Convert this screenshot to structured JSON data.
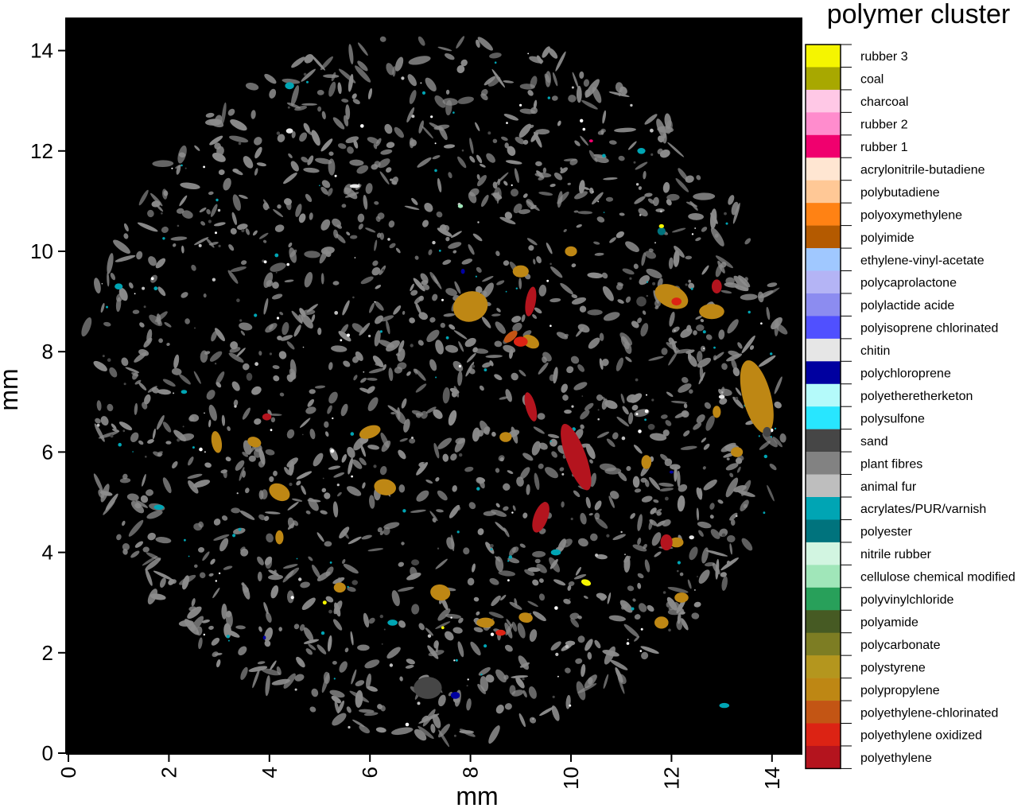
{
  "figure": {
    "x_axis_label": "mm",
    "y_axis_label": "mm",
    "x_ticks": [
      "0",
      "2",
      "4",
      "6",
      "8",
      "10",
      "12",
      "14"
    ],
    "y_ticks": [
      "0",
      "2",
      "4",
      "6",
      "8",
      "10",
      "12",
      "14"
    ],
    "x_range": [
      0,
      14.7
    ],
    "y_range": [
      0,
      14.6
    ],
    "background_color": "#000000",
    "matrix_color": "#8c8c8c"
  },
  "legend": {
    "title": "polymer cluster",
    "items": [
      {
        "label": "rubber 3",
        "color": "#f5f500"
      },
      {
        "label": "coal",
        "color": "#a8a800"
      },
      {
        "label": "charcoal",
        "color": "#ffc8e6"
      },
      {
        "label": "rubber 2",
        "color": "#ff8ccd"
      },
      {
        "label": "rubber 1",
        "color": "#f0006e"
      },
      {
        "label": "acrylonitrile-butadiene",
        "color": "#ffe6d2"
      },
      {
        "label": "polybutadiene",
        "color": "#ffc896"
      },
      {
        "label": "polyoxymethylene",
        "color": "#ff8214"
      },
      {
        "label": "polyimide",
        "color": "#b45a00"
      },
      {
        "label": "ethylene-vinyl-acetate",
        "color": "#a0c8ff"
      },
      {
        "label": "polycaprolactone",
        "color": "#b4b4f5"
      },
      {
        "label": "polylactide acide",
        "color": "#8c8cf0"
      },
      {
        "label": "polyisoprene chlorinated",
        "color": "#5050ff"
      },
      {
        "label": "chitin",
        "color": "#e6e6e6"
      },
      {
        "label": "polychloroprene",
        "color": "#0000a0"
      },
      {
        "label": "polyetheretherketon",
        "color": "#b4fafa"
      },
      {
        "label": "polysulfone",
        "color": "#28e6ff"
      },
      {
        "label": "sand",
        "color": "#464646"
      },
      {
        "label": "plant fibres",
        "color": "#828282"
      },
      {
        "label": "animal fur",
        "color": "#bebebe"
      },
      {
        "label": "acrylates/PUR/varnish",
        "color": "#00a5b4"
      },
      {
        "label": "polyester",
        "color": "#00737d"
      },
      {
        "label": "nitrile rubber",
        "color": "#d2f5e1"
      },
      {
        "label": "cellulose chemical modified",
        "color": "#a0e6b9"
      },
      {
        "label": "polyvinylchloride",
        "color": "#28a05a"
      },
      {
        "label": "polyamide",
        "color": "#465a23"
      },
      {
        "label": "polycarbonate",
        "color": "#7d7d23"
      },
      {
        "label": "polystyrene",
        "color": "#b4961e"
      },
      {
        "label": "polypropylene",
        "color": "#be8714"
      },
      {
        "label": "polyethylene-chlorinated",
        "color": "#c35514"
      },
      {
        "label": "polyethylene oxidized",
        "color": "#dc2314"
      },
      {
        "label": "polyethylene",
        "color": "#b4141e"
      }
    ]
  },
  "particles": [
    {
      "cls": "polypropylene",
      "x": 8.0,
      "y": 8.9,
      "rx": 0.35,
      "ry": 0.3,
      "rot": -20
    },
    {
      "cls": "polypropylene",
      "x": 13.7,
      "y": 7.1,
      "rx": 0.28,
      "ry": 0.75,
      "rot": -15
    },
    {
      "cls": "polypropylene",
      "x": 12.0,
      "y": 9.1,
      "rx": 0.35,
      "ry": 0.22,
      "rot": 25
    },
    {
      "cls": "polypropylene",
      "x": 12.8,
      "y": 8.8,
      "rx": 0.25,
      "ry": 0.15,
      "rot": 0
    },
    {
      "cls": "polypropylene",
      "x": 6.3,
      "y": 5.3,
      "rx": 0.22,
      "ry": 0.16,
      "rot": 10
    },
    {
      "cls": "polypropylene",
      "x": 6.0,
      "y": 6.4,
      "rx": 0.22,
      "ry": 0.12,
      "rot": -20
    },
    {
      "cls": "polypropylene",
      "x": 4.2,
      "y": 5.2,
      "rx": 0.22,
      "ry": 0.16,
      "rot": 30
    },
    {
      "cls": "polypropylene",
      "x": 2.95,
      "y": 6.2,
      "rx": 0.1,
      "ry": 0.22,
      "rot": -10
    },
    {
      "cls": "polypropylene",
      "x": 3.7,
      "y": 6.2,
      "rx": 0.14,
      "ry": 0.1,
      "rot": 20
    },
    {
      "cls": "polypropylene",
      "x": 7.4,
      "y": 3.2,
      "rx": 0.2,
      "ry": 0.16,
      "rot": 10
    },
    {
      "cls": "polypropylene",
      "x": 8.3,
      "y": 2.6,
      "rx": 0.18,
      "ry": 0.1,
      "rot": 0
    },
    {
      "cls": "polypropylene",
      "x": 9.1,
      "y": 2.7,
      "rx": 0.14,
      "ry": 0.1,
      "rot": 10
    },
    {
      "cls": "polypropylene",
      "x": 11.8,
      "y": 2.6,
      "rx": 0.14,
      "ry": 0.12,
      "rot": 0
    },
    {
      "cls": "polypropylene",
      "x": 12.2,
      "y": 3.1,
      "rx": 0.14,
      "ry": 0.1,
      "rot": 0
    },
    {
      "cls": "polypropylene",
      "x": 9.0,
      "y": 9.6,
      "rx": 0.16,
      "ry": 0.12,
      "rot": 0
    },
    {
      "cls": "polypropylene",
      "x": 10.0,
      "y": 10.0,
      "rx": 0.12,
      "ry": 0.1,
      "rot": 0
    },
    {
      "cls": "polypropylene",
      "x": 9.2,
      "y": 8.2,
      "rx": 0.18,
      "ry": 0.12,
      "rot": 30
    },
    {
      "cls": "polypropylene",
      "x": 8.7,
      "y": 6.3,
      "rx": 0.12,
      "ry": 0.1,
      "rot": 0
    },
    {
      "cls": "polypropylene",
      "x": 11.5,
      "y": 5.8,
      "rx": 0.1,
      "ry": 0.14,
      "rot": 0
    },
    {
      "cls": "polypropylene",
      "x": 13.3,
      "y": 6.0,
      "rx": 0.12,
      "ry": 0.1,
      "rot": 0
    },
    {
      "cls": "polypropylene",
      "x": 12.1,
      "y": 4.2,
      "rx": 0.14,
      "ry": 0.1,
      "rot": 0
    },
    {
      "cls": "polypropylene",
      "x": 5.4,
      "y": 3.3,
      "rx": 0.12,
      "ry": 0.1,
      "rot": 0
    },
    {
      "cls": "polypropylene",
      "x": 4.2,
      "y": 4.3,
      "rx": 0.08,
      "ry": 0.14,
      "rot": 0
    },
    {
      "cls": "polypropylene",
      "x": 12.9,
      "y": 6.8,
      "rx": 0.08,
      "ry": 0.12,
      "rot": 0
    },
    {
      "cls": "polyethylene",
      "x": 10.1,
      "y": 5.9,
      "rx": 0.2,
      "ry": 0.7,
      "rot": -20
    },
    {
      "cls": "polyethylene",
      "x": 9.4,
      "y": 4.7,
      "rx": 0.14,
      "ry": 0.32,
      "rot": 20
    },
    {
      "cls": "polyethylene",
      "x": 9.2,
      "y": 6.9,
      "rx": 0.1,
      "ry": 0.3,
      "rot": -15
    },
    {
      "cls": "polyethylene",
      "x": 11.9,
      "y": 4.2,
      "rx": 0.12,
      "ry": 0.16,
      "rot": 0
    },
    {
      "cls": "polyethylene",
      "x": 3.95,
      "y": 6.7,
      "rx": 0.09,
      "ry": 0.07,
      "rot": 0
    },
    {
      "cls": "polyethylene",
      "x": 12.9,
      "y": 9.3,
      "rx": 0.1,
      "ry": 0.14,
      "rot": 0
    },
    {
      "cls": "polyethylene",
      "x": 9.2,
      "y": 9.0,
      "rx": 0.1,
      "ry": 0.3,
      "rot": 10
    },
    {
      "cls": "polyethylene oxidized",
      "x": 9.0,
      "y": 8.2,
      "rx": 0.14,
      "ry": 0.1,
      "rot": 0
    },
    {
      "cls": "polyethylene oxidized",
      "x": 12.1,
      "y": 9.0,
      "rx": 0.1,
      "ry": 0.08,
      "rot": 0
    },
    {
      "cls": "polyethylene oxidized",
      "x": 8.6,
      "y": 2.4,
      "rx": 0.1,
      "ry": 0.06,
      "rot": 0
    },
    {
      "cls": "polyethylene-chlorinated",
      "x": 8.8,
      "y": 8.3,
      "rx": 0.16,
      "ry": 0.08,
      "rot": -40
    },
    {
      "cls": "sand",
      "x": 7.15,
      "y": 1.3,
      "rx": 0.28,
      "ry": 0.22,
      "rot": 0
    },
    {
      "cls": "sand",
      "x": 11.4,
      "y": 9.0,
      "rx": 0.1,
      "ry": 0.1,
      "rot": 0
    },
    {
      "cls": "sand",
      "x": 6.9,
      "y": 3.8,
      "rx": 0.08,
      "ry": 0.06,
      "rot": 0
    },
    {
      "cls": "sand",
      "x": 5.7,
      "y": 3.4,
      "rx": 0.06,
      "ry": 0.05,
      "rot": 0
    },
    {
      "cls": "sand",
      "x": 3.6,
      "y": 7.5,
      "rx": 0.06,
      "ry": 0.08,
      "rot": 0
    },
    {
      "cls": "sand",
      "x": 11.6,
      "y": 6.5,
      "rx": 0.07,
      "ry": 0.06,
      "rot": 0
    },
    {
      "cls": "sand",
      "x": 13.9,
      "y": 6.4,
      "rx": 0.08,
      "ry": 0.1,
      "rot": 0
    },
    {
      "cls": "polychloroprene",
      "x": 7.7,
      "y": 1.15,
      "rx": 0.09,
      "ry": 0.07,
      "rot": 0
    },
    {
      "cls": "polychloroprene",
      "x": 7.85,
      "y": 9.6,
      "rx": 0.04,
      "ry": 0.05,
      "rot": 0
    },
    {
      "cls": "polychloroprene",
      "x": 3.9,
      "y": 2.3,
      "rx": 0.03,
      "ry": 0.04,
      "rot": 0
    },
    {
      "cls": "polychloroprene",
      "x": 12.0,
      "y": 5.6,
      "rx": 0.04,
      "ry": 0.03,
      "rot": 0
    },
    {
      "cls": "acrylates/PUR/varnish",
      "x": 4.4,
      "y": 13.3,
      "rx": 0.09,
      "ry": 0.07,
      "rot": 0
    },
    {
      "cls": "acrylates/PUR/varnish",
      "x": 1.0,
      "y": 9.3,
      "rx": 0.08,
      "ry": 0.06,
      "rot": 0
    },
    {
      "cls": "acrylates/PUR/varnish",
      "x": 1.8,
      "y": 4.9,
      "rx": 0.1,
      "ry": 0.05,
      "rot": 0
    },
    {
      "cls": "acrylates/PUR/varnish",
      "x": 6.45,
      "y": 2.6,
      "rx": 0.1,
      "ry": 0.06,
      "rot": 0
    },
    {
      "cls": "acrylates/PUR/varnish",
      "x": 13.05,
      "y": 0.95,
      "rx": 0.1,
      "ry": 0.05,
      "rot": 0
    },
    {
      "cls": "acrylates/PUR/varnish",
      "x": 11.4,
      "y": 12.0,
      "rx": 0.08,
      "ry": 0.06,
      "rot": 0
    },
    {
      "cls": "acrylates/PUR/varnish",
      "x": 9.7,
      "y": 4.0,
      "rx": 0.1,
      "ry": 0.06,
      "rot": 0
    },
    {
      "cls": "acrylates/PUR/varnish",
      "x": 2.3,
      "y": 7.2,
      "rx": 0.06,
      "ry": 0.04,
      "rot": 0
    },
    {
      "cls": "polyester",
      "x": 11.8,
      "y": 10.4,
      "rx": 0.08,
      "ry": 0.08,
      "rot": 0
    },
    {
      "cls": "rubber 3",
      "x": 10.3,
      "y": 3.4,
      "rx": 0.1,
      "ry": 0.06,
      "rot": 20
    },
    {
      "cls": "rubber 3",
      "x": 11.8,
      "y": 10.5,
      "rx": 0.05,
      "ry": 0.04,
      "rot": 0
    },
    {
      "cls": "rubber 3",
      "x": 5.1,
      "y": 3.0,
      "rx": 0.04,
      "ry": 0.04,
      "rot": 0
    },
    {
      "cls": "rubber 3",
      "x": 7.45,
      "y": 2.5,
      "rx": 0.03,
      "ry": 0.03,
      "rot": 0
    },
    {
      "cls": "chitin",
      "x": 5.7,
      "y": 11.3,
      "rx": 0.1,
      "ry": 0.04,
      "rot": 0
    },
    {
      "cls": "chitin",
      "x": 4.4,
      "y": 12.4,
      "rx": 0.07,
      "ry": 0.05,
      "rot": 0
    },
    {
      "cls": "chitin",
      "x": 13.0,
      "y": 7.1,
      "rx": 0.06,
      "ry": 0.04,
      "rot": 0
    },
    {
      "cls": "chitin",
      "x": 12.4,
      "y": 4.3,
      "rx": 0.05,
      "ry": 0.04,
      "rot": 0
    },
    {
      "cls": "cellulose chemical modified",
      "x": 7.8,
      "y": 10.9,
      "rx": 0.05,
      "ry": 0.04,
      "rot": 0
    },
    {
      "cls": "rubber 1",
      "x": 10.4,
      "y": 12.2,
      "rx": 0.04,
      "ry": 0.03,
      "rot": 0
    }
  ]
}
